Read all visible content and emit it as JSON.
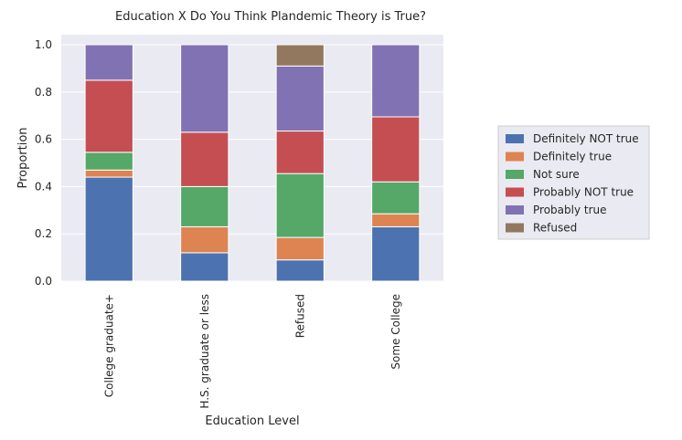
{
  "chart_data": {
    "type": "bar",
    "stacked": true,
    "title": "Education X Do You Think Plandemic Theory is True?",
    "xlabel": "Education Level",
    "ylabel": "Proportion",
    "ylim": [
      0,
      1.0
    ],
    "yticks": [
      "0.0",
      "0.2",
      "0.4",
      "0.6",
      "0.8",
      "1.0"
    ],
    "grid": true,
    "legend_position": "right",
    "categories": [
      "College graduate+",
      "H.S. graduate or less",
      "Refused",
      "Some College"
    ],
    "series": [
      {
        "name": "Definitely NOT true",
        "color": "#4c72b0",
        "values": [
          0.44,
          0.12,
          0.09,
          0.23
        ]
      },
      {
        "name": "Definitely true",
        "color": "#dd8452",
        "values": [
          0.03,
          0.11,
          0.095,
          0.055
        ]
      },
      {
        "name": "Not sure",
        "color": "#55a868",
        "values": [
          0.075,
          0.17,
          0.27,
          0.135
        ]
      },
      {
        "name": "Probably NOT true",
        "color": "#c44e52",
        "values": [
          0.305,
          0.23,
          0.18,
          0.275
        ]
      },
      {
        "name": "Probably true",
        "color": "#8172b3",
        "values": [
          0.15,
          0.37,
          0.275,
          0.305
        ]
      },
      {
        "name": "Refused",
        "color": "#937860",
        "values": [
          0.0,
          0.0,
          0.09,
          0.0
        ]
      }
    ]
  }
}
